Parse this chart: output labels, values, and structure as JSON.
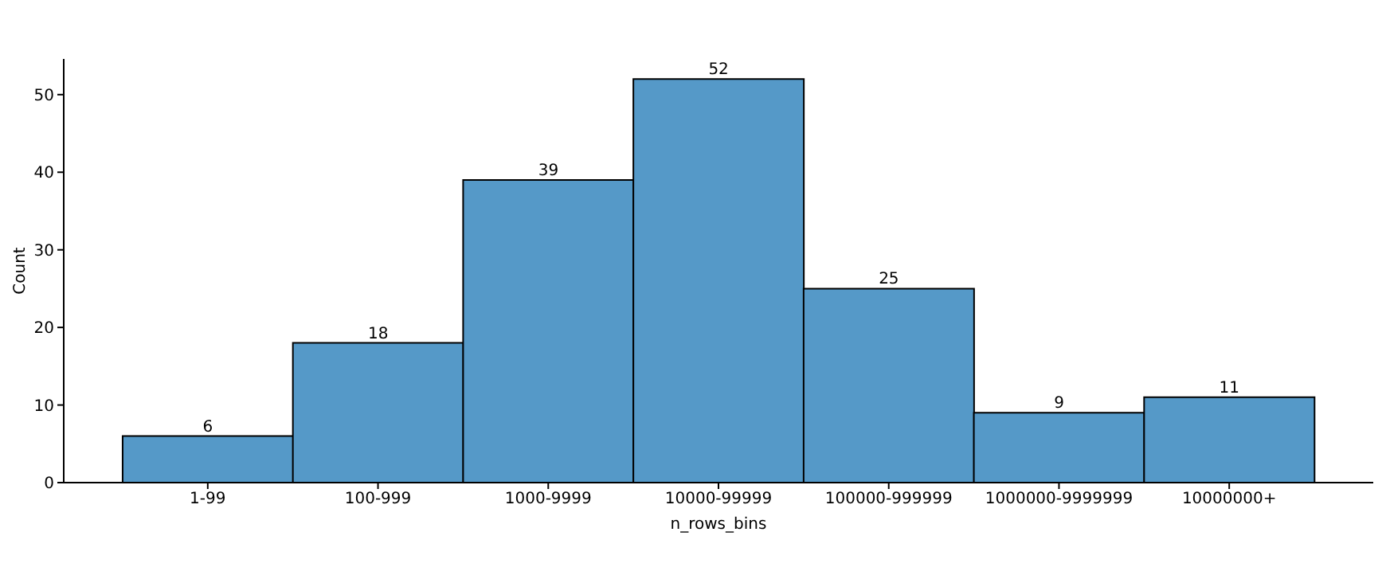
{
  "chart_data": {
    "type": "bar",
    "xlabel": "n_rows_bins",
    "ylabel": "Count",
    "categories": [
      "1-99",
      "100-999",
      "1000-9999",
      "10000-99999",
      "100000-999999",
      "1000000-9999999",
      "10000000+"
    ],
    "values": [
      6,
      18,
      39,
      52,
      25,
      9,
      11
    ],
    "color": "#5599c8",
    "ylim": [
      0,
      54.6
    ],
    "yticks": [
      0,
      10,
      20,
      30,
      40,
      50
    ],
    "data_labels": true
  }
}
